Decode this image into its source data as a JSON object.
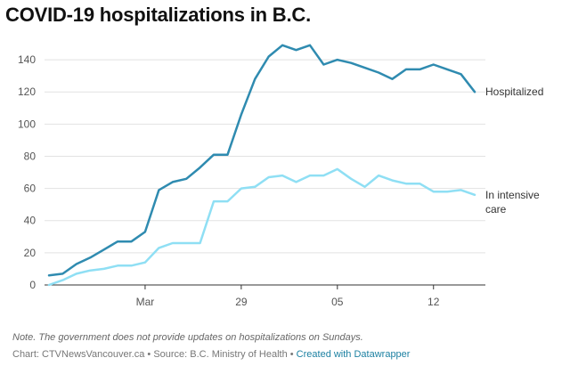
{
  "title": "COVID-19 hospitalizations in B.C.",
  "note": "Note. The government does not provide updates on hospitalizations on Sundays.",
  "source": {
    "text": "Chart: CTVNewsVancouver.ca • Source: B.C. Ministry of Health • ",
    "link": "Created with Datawrapper"
  },
  "chart_data": {
    "type": "line",
    "x": [
      "Mar 15",
      "Mar 16",
      "Mar 17",
      "Mar 18",
      "Mar 19",
      "Mar 20",
      "Mar 21",
      "Mar 22",
      "Mar 23",
      "Mar 24",
      "Mar 25",
      "Mar 26",
      "Mar 27",
      "Mar 28",
      "Mar 29",
      "Mar 30",
      "Mar 31",
      "Apr 1",
      "Apr 2",
      "Apr 3",
      "Apr 4",
      "Apr 5",
      "Apr 6",
      "Apr 7",
      "Apr 8",
      "Apr 9",
      "Apr 10",
      "Apr 11",
      "Apr 12",
      "Apr 13",
      "Apr 14",
      "Apr 15"
    ],
    "x_ticks": [
      {
        "x": "Mar 22",
        "label": "Mar"
      },
      {
        "x": "Mar 29",
        "label": "29"
      },
      {
        "x": "Apr 5",
        "label": "05"
      },
      {
        "x": "Apr 12",
        "label": "12"
      }
    ],
    "ylim": [
      0,
      150
    ],
    "y_ticks": [
      0,
      20,
      40,
      60,
      80,
      100,
      120,
      140
    ],
    "series": [
      {
        "name": "Hospitalized",
        "color": "#2f8bb0",
        "values": [
          6,
          7,
          13,
          17,
          22,
          27,
          27,
          33,
          59,
          64,
          66,
          73,
          81,
          81,
          106,
          128,
          142,
          149,
          146,
          149,
          137,
          140,
          138,
          135,
          132,
          128,
          134,
          134,
          137,
          134,
          131,
          120
        ]
      },
      {
        "name": "In intensive care",
        "name_lines": [
          "In intensive",
          "care"
        ],
        "color": "#8fdff4",
        "values": [
          0,
          3,
          7,
          9,
          10,
          12,
          12,
          14,
          23,
          26,
          26,
          26,
          52,
          52,
          60,
          61,
          67,
          68,
          64,
          68,
          68,
          72,
          66,
          61,
          68,
          65,
          63,
          63,
          58,
          58,
          59,
          56
        ]
      }
    ],
    "grid": true,
    "legend": "direct labels at line ends"
  }
}
